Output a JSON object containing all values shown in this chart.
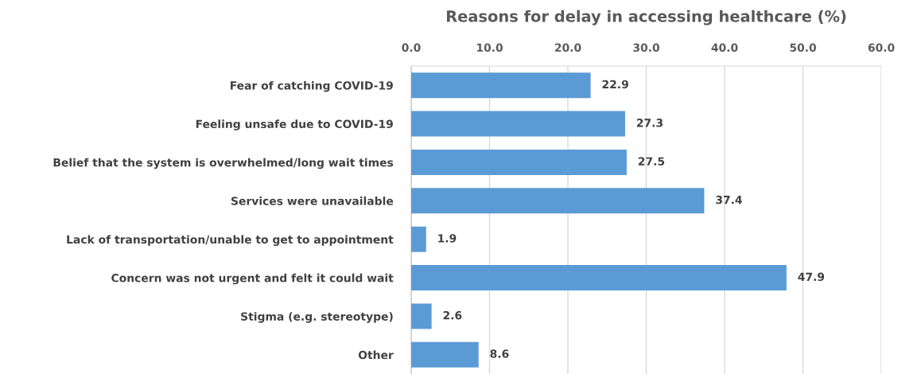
{
  "chart_data": {
    "type": "bar",
    "orientation": "horizontal",
    "title": "Reasons for delay in accessing healthcare (%)",
    "categories": [
      "Fear of catching COVID-19",
      "Feeling unsafe due to COVID-19",
      "Belief that the system is overwhelmed/long wait times",
      "Services were unavailable",
      "Lack of transportation/unable to get to appointment",
      "Concern was not urgent and felt it could wait",
      "Stigma (e.g. stereotype)",
      "Other"
    ],
    "values": [
      22.9,
      27.3,
      27.5,
      37.4,
      1.9,
      47.9,
      2.6,
      8.6
    ],
    "color": "#5b9bd5",
    "xlim": [
      0,
      60
    ],
    "xticks": [
      {
        "value": 0,
        "label": "0.0"
      },
      {
        "value": 10,
        "label": "10.0"
      },
      {
        "value": 20,
        "label": "20.0"
      },
      {
        "value": 30,
        "label": "30.0"
      },
      {
        "value": 40,
        "label": "40.0"
      },
      {
        "value": 50,
        "label": "50.0"
      },
      {
        "value": 60,
        "label": "60.0"
      }
    ],
    "grid": "x",
    "data_labels": true,
    "legend": false
  }
}
